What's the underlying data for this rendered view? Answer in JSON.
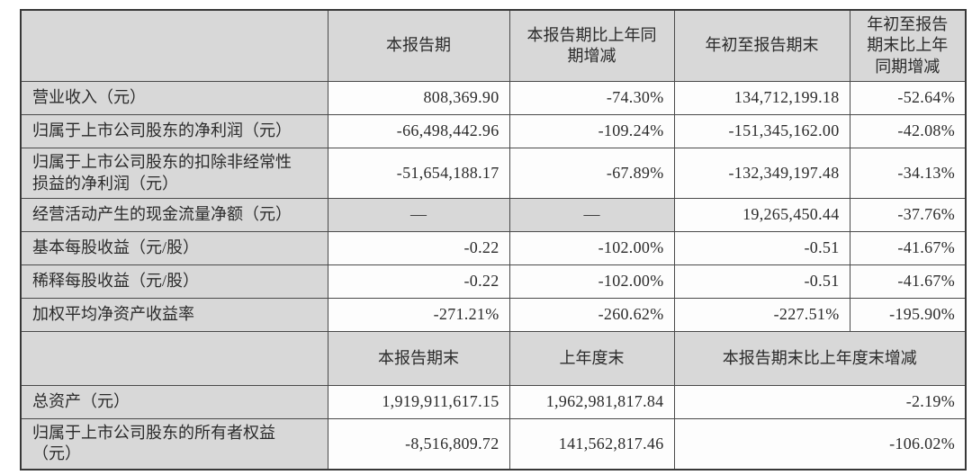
{
  "colors": {
    "background": "#ffffff",
    "cell_shading": "#d8d8d8",
    "grid_line": "#4a4a4a",
    "grid_line_outer": "#383838",
    "text": "#2b2b2b"
  },
  "table": {
    "section1": {
      "header": [
        {
          "text": ""
        },
        {
          "text": "本报告期"
        },
        {
          "text": "本报告期比上年同期增减"
        },
        {
          "text": "年初至报告期末"
        },
        {
          "text": "年初至报告期末比上年同期增减"
        }
      ],
      "rows": [
        {
          "label": "营业收入（元）",
          "cells": [
            {
              "text": "808,369.90"
            },
            {
              "text": "-74.30%"
            },
            {
              "text": "134,712,199.18"
            },
            {
              "text": "-52.64%"
            }
          ]
        },
        {
          "label": "归属于上市公司股东的净利润（元）",
          "cells": [
            {
              "text": "-66,498,442.96"
            },
            {
              "text": "-109.24%"
            },
            {
              "text": "-151,345,162.00"
            },
            {
              "text": "-42.08%"
            }
          ]
        },
        {
          "label": "归属于上市公司股东的扣除非经常性损益的净利润（元）",
          "cells": [
            {
              "text": "-51,654,188.17"
            },
            {
              "text": "-67.89%"
            },
            {
              "text": "-132,349,197.48"
            },
            {
              "text": "-34.13%"
            }
          ]
        },
        {
          "label": "经营活动产生的现金流量净额（元）",
          "cells": [
            {
              "text": "—",
              "shaded": true,
              "center": true
            },
            {
              "text": "—",
              "shaded": true,
              "center": true
            },
            {
              "text": "19,265,450.44"
            },
            {
              "text": "-37.76%"
            }
          ]
        },
        {
          "label": "基本每股收益（元/股）",
          "cells": [
            {
              "text": "-0.22"
            },
            {
              "text": "-102.00%"
            },
            {
              "text": "-0.51"
            },
            {
              "text": "-41.67%"
            }
          ]
        },
        {
          "label": "稀释每股收益（元/股）",
          "cells": [
            {
              "text": "-0.22"
            },
            {
              "text": "-102.00%"
            },
            {
              "text": "-0.51"
            },
            {
              "text": "-41.67%"
            }
          ]
        },
        {
          "label": "加权平均净资产收益率",
          "cells": [
            {
              "text": "-271.21%"
            },
            {
              "text": "-260.62%"
            },
            {
              "text": "-227.51%"
            },
            {
              "text": "-195.90%"
            }
          ]
        }
      ]
    },
    "section2": {
      "header": [
        {
          "text": ""
        },
        {
          "text": "本报告期末"
        },
        {
          "text": "上年度末"
        },
        {
          "text": "本报告期末比上年度末增减",
          "span": 2
        }
      ],
      "rows": [
        {
          "label": "总资产（元）",
          "cells": [
            {
              "text": "1,919,911,617.15"
            },
            {
              "text": "1,962,981,817.84"
            },
            {
              "text": "-2.19%",
              "span": 2
            }
          ]
        },
        {
          "label": "归属于上市公司股东的所有者权益（元）",
          "cells": [
            {
              "text": "-8,516,809.72"
            },
            {
              "text": "141,562,817.46"
            },
            {
              "text": "-106.02%",
              "span": 2
            }
          ]
        }
      ]
    }
  }
}
